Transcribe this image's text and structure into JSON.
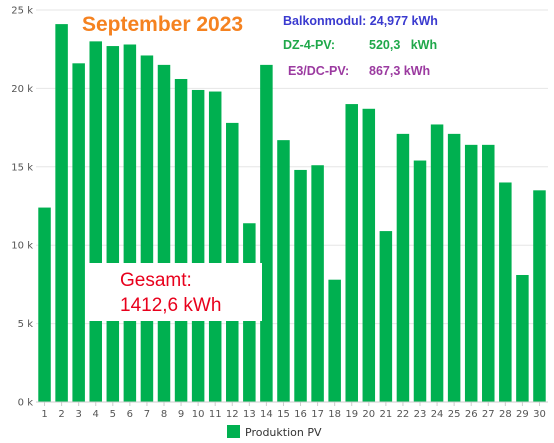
{
  "chart_data": {
    "type": "bar",
    "title": "September 2023",
    "categories": [
      "1",
      "2",
      "3",
      "4",
      "5",
      "6",
      "7",
      "8",
      "9",
      "10",
      "11",
      "12",
      "13",
      "14",
      "15",
      "16",
      "17",
      "18",
      "19",
      "20",
      "21",
      "22",
      "23",
      "24",
      "25",
      "26",
      "27",
      "28",
      "29",
      "30"
    ],
    "series": [
      {
        "name": "Produktion PV",
        "color": "#00b050",
        "values": [
          12.4,
          24.1,
          21.6,
          23.0,
          22.7,
          22.8,
          22.1,
          21.5,
          20.6,
          19.9,
          19.8,
          17.8,
          11.4,
          21.5,
          16.7,
          14.8,
          15.1,
          7.8,
          19.0,
          18.7,
          10.9,
          17.1,
          15.4,
          17.7,
          17.1,
          16.4,
          16.4,
          14.0,
          8.1,
          13.5
        ]
      }
    ],
    "yticks": [
      "0 k",
      "5 k",
      "10 k",
      "15 k",
      "20 k",
      "25 k"
    ],
    "ylim": [
      0,
      25
    ],
    "legend_position": "bottom",
    "annotations": {
      "balkon": "Balkonmodul: 24,977 kWh",
      "dz_label": "DZ-4-PV:",
      "dz_value": "520,3   kWh",
      "e3_label": "E3/DC-PV:",
      "e3_value": "867,3 kWh",
      "total_label": "Gesamt:",
      "total_value": "1412,6 kWh"
    },
    "colors": {
      "bar": "#00b050",
      "title": "#f58220",
      "balkon": "#3a3acf",
      "dz": "#1fa84a",
      "e3": "#9b3aa0",
      "total": "#e8001c",
      "grid": "#e6e6e6"
    }
  }
}
